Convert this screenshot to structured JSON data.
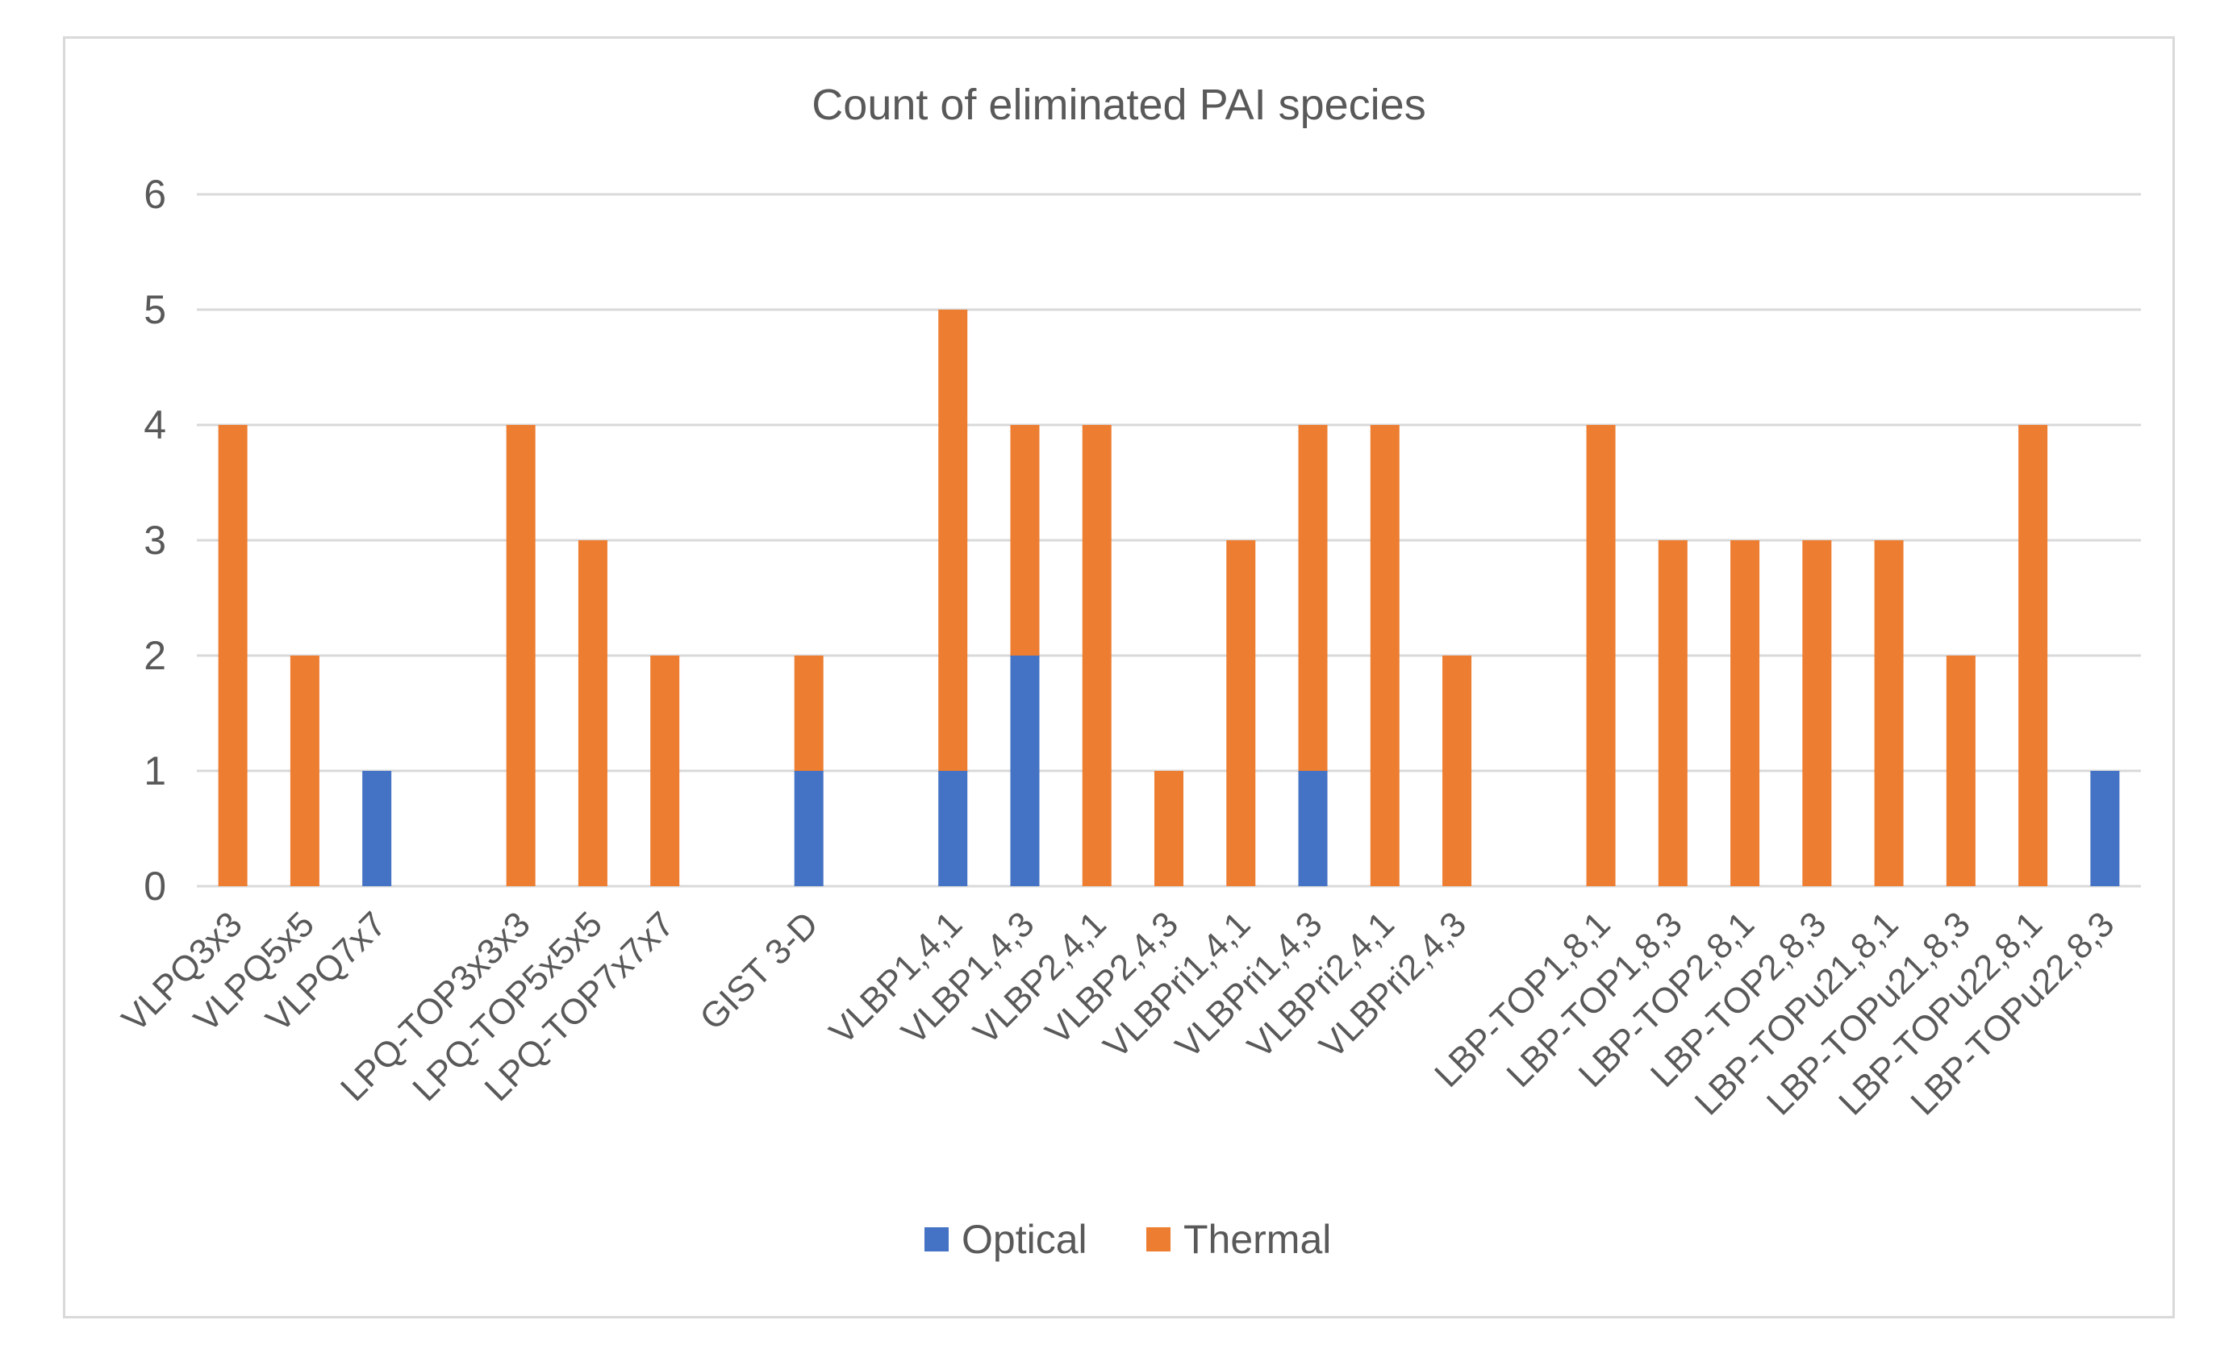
{
  "chart_data": {
    "type": "bar",
    "stacked": true,
    "title": "Count of eliminated PAI species",
    "xlabel": "",
    "ylabel": "",
    "ylim": [
      0,
      6
    ],
    "yticks": [
      0,
      1,
      2,
      3,
      4,
      5,
      6
    ],
    "grid": true,
    "legend_position": "bottom",
    "categories": [
      "VLPQ3x3",
      "VLPQ5x5",
      "VLPQ7x7",
      "",
      "LPQ-TOP3x3x3",
      "LPQ-TOP5x5x5",
      "LPQ-TOP7x7x7",
      "",
      "GIST 3-D",
      "",
      "VLBP1,4,1",
      "VLBP1,4,3",
      "VLBP2,4,1",
      "VLBP2,4,3",
      "VLBPri1,4,1",
      "VLBPri1,4,3",
      "VLBPri2,4,1",
      "VLBPri2,4,3",
      "",
      "LBP-TOP1,8,1",
      "LBP-TOP1,8,3",
      "LBP-TOP2,8,1",
      "LBP-TOP2,8,3",
      "LBP-TOPu21,8,1",
      "LBP-TOPu21,8,3",
      "LBP-TOPu22,8,1",
      "LBP-TOPu22,8,3"
    ],
    "series": [
      {
        "name": "Optical",
        "color": "#4472c4",
        "values": [
          0,
          0,
          1,
          0,
          0,
          0,
          0,
          0,
          1,
          0,
          1,
          2,
          0,
          0,
          0,
          1,
          0,
          0,
          0,
          0,
          0,
          0,
          0,
          0,
          0,
          0,
          1
        ]
      },
      {
        "name": "Thermal",
        "color": "#ed7d31",
        "values": [
          4,
          2,
          0,
          0,
          4,
          3,
          2,
          0,
          1,
          0,
          4,
          2,
          4,
          1,
          3,
          3,
          4,
          2,
          0,
          4,
          3,
          3,
          3,
          3,
          2,
          4,
          0
        ]
      }
    ]
  }
}
